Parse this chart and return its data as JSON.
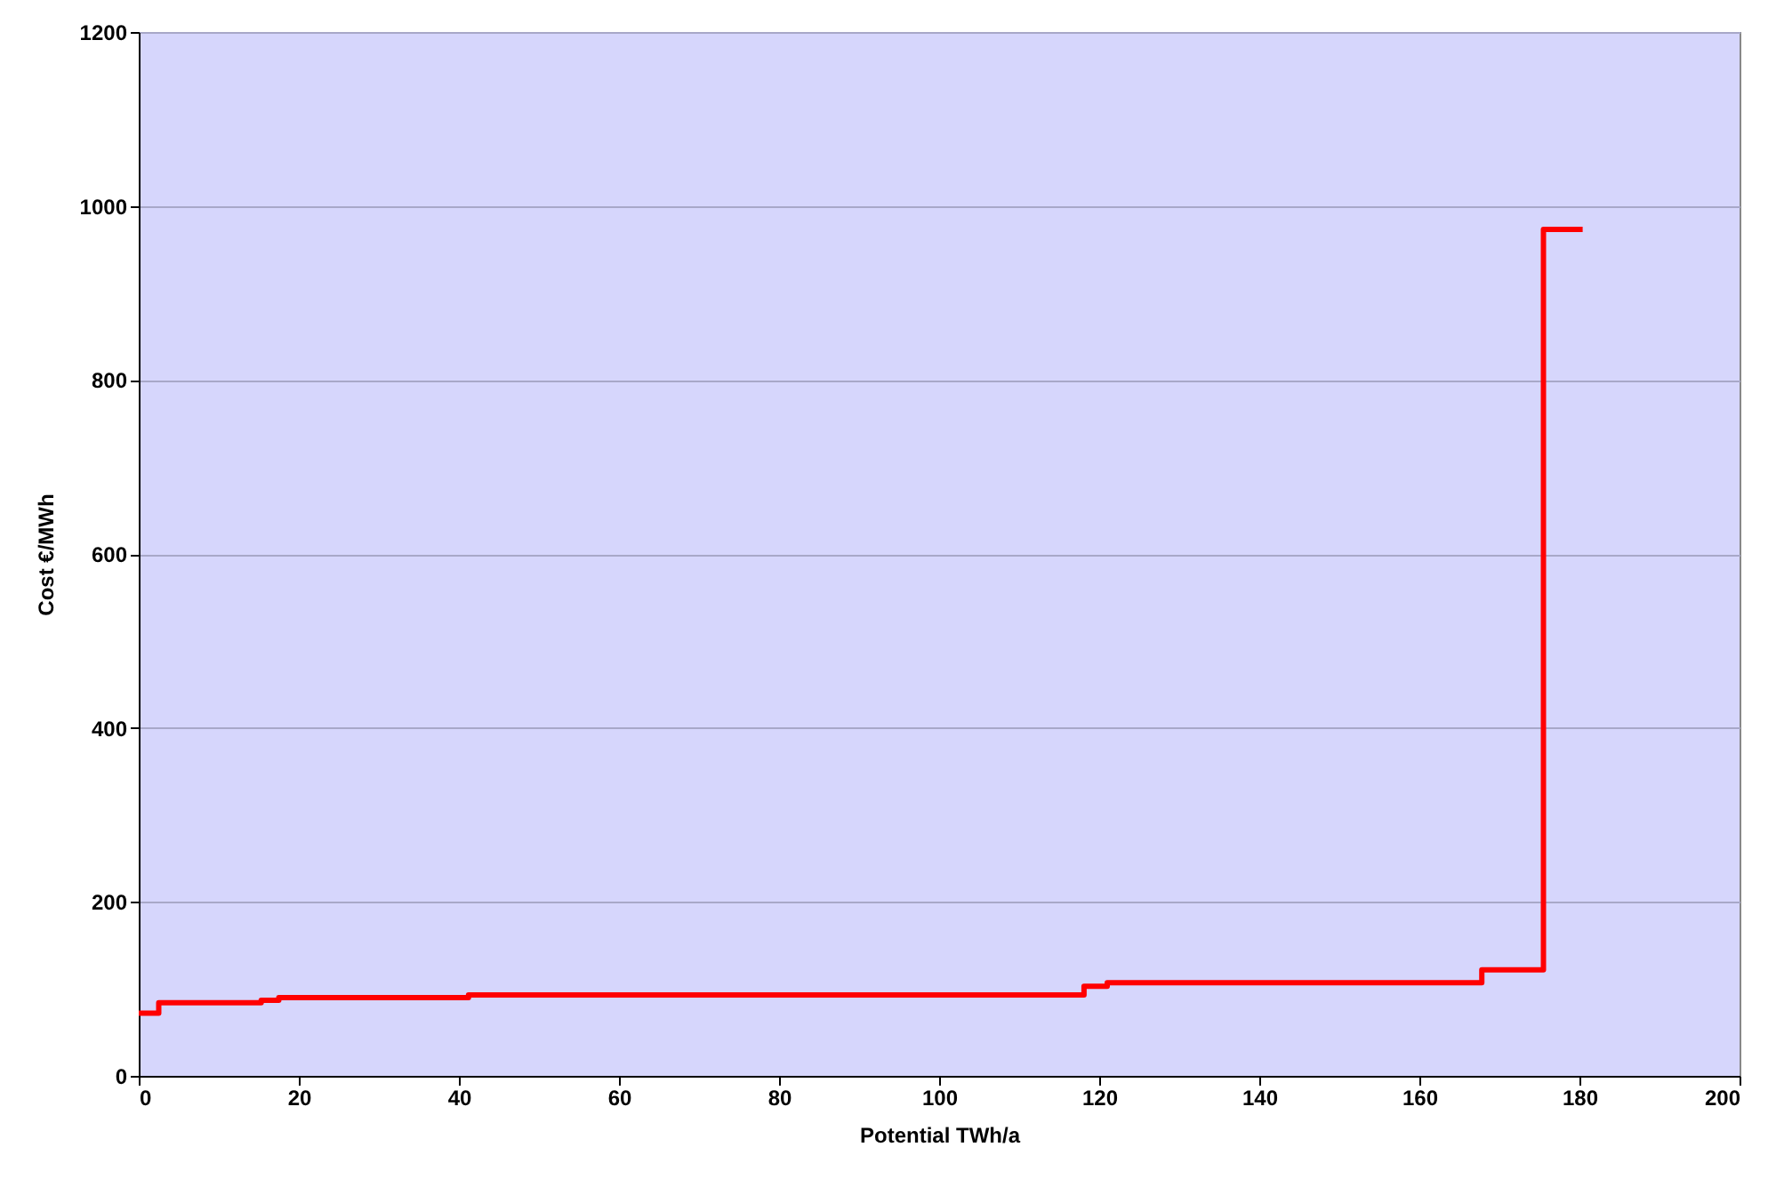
{
  "chart_data": {
    "type": "step",
    "xlabel": "Potential TWh/a",
    "ylabel": "Cost €/MWh",
    "x": [
      0,
      2.5,
      15.3,
      17.5,
      41.2,
      118.1,
      121,
      167.8,
      175.5,
      180.4
    ],
    "series": [
      {
        "color": "#ff0000",
        "values": [
          72,
          84,
          87,
          90,
          93,
          103,
          107,
          122,
          973,
          973
        ]
      }
    ],
    "xlim": [
      0,
      200
    ],
    "xticks": [
      0,
      20,
      40,
      60,
      80,
      100,
      120,
      140,
      160,
      180,
      200
    ],
    "ylim": [
      0,
      1200
    ],
    "yticks": [
      0,
      200,
      400,
      600,
      800,
      1000,
      1200
    ],
    "grid": "y",
    "marker": "none",
    "line_style": "solid"
  }
}
